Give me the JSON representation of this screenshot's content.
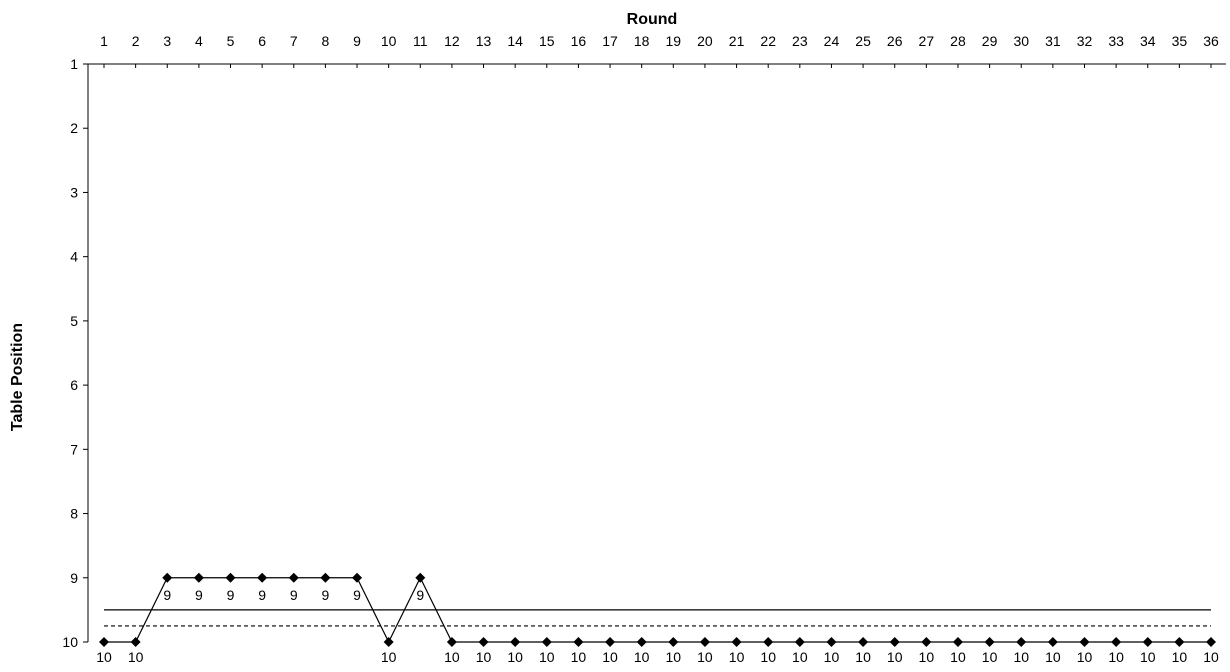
{
  "chart_data": {
    "type": "line",
    "title": "Round",
    "xlabel": "",
    "ylabel": "Table Position",
    "x_axis_position": "top",
    "y_axis_inverted": true,
    "grid": false,
    "legend": "none",
    "x": [
      1,
      2,
      3,
      4,
      5,
      6,
      7,
      8,
      9,
      10,
      11,
      12,
      13,
      14,
      15,
      16,
      17,
      18,
      19,
      20,
      21,
      22,
      23,
      24,
      25,
      26,
      27,
      28,
      29,
      30,
      31,
      32,
      33,
      34,
      35,
      36
    ],
    "xlim": [
      1,
      36
    ],
    "ylim": [
      1,
      10
    ],
    "y_ticks": [
      1,
      2,
      3,
      4,
      5,
      6,
      7,
      8,
      9,
      10
    ],
    "series": [
      {
        "values": [
          10,
          10,
          9,
          9,
          9,
          9,
          9,
          9,
          9,
          10,
          9,
          10,
          10,
          10,
          10,
          10,
          10,
          10,
          10,
          10,
          10,
          10,
          10,
          10,
          10,
          10,
          10,
          10,
          10,
          10,
          10,
          10,
          10,
          10,
          10,
          10
        ],
        "marker": "diamond",
        "color": "#000000"
      }
    ],
    "reference_lines": [
      {
        "y": 9.5,
        "style": "solid",
        "color": "#000000"
      },
      {
        "y": 9.75,
        "style": "dashed",
        "color": "#000000"
      }
    ]
  }
}
